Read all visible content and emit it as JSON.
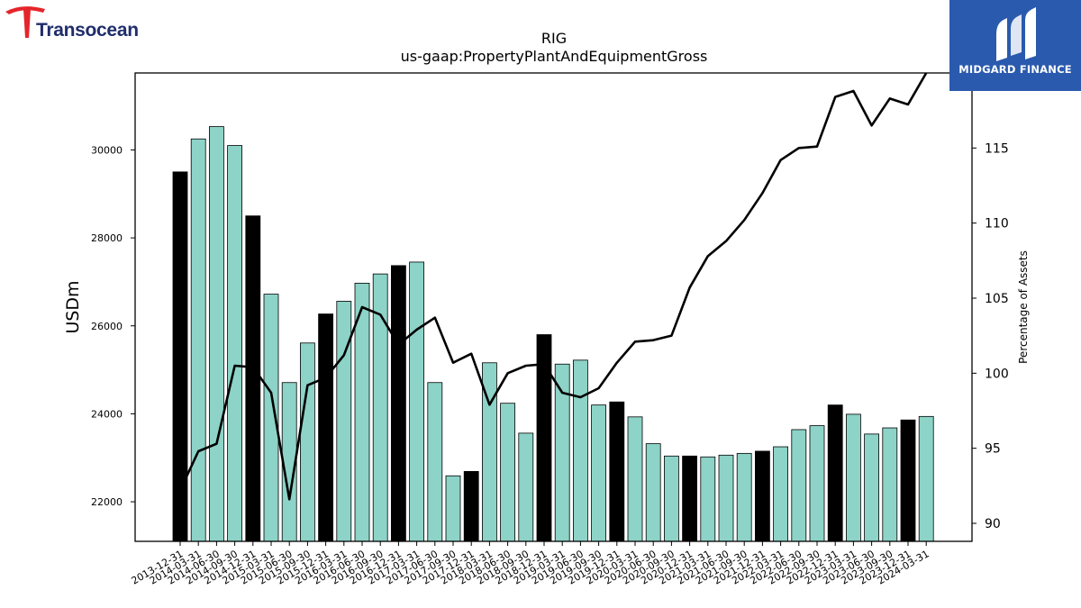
{
  "logos": {
    "left_text": "Transocean",
    "right_text": "MIDGARD FINANCE"
  },
  "colors": {
    "bar_normal": "#8dd3c7",
    "bar_highlight": "#000000",
    "line": "#000000",
    "logo_left_red": "#e4252b",
    "logo_left_navy": "#1f2d6b",
    "logo_right_bg": "#2a5aad"
  },
  "chart_data": {
    "type": "bar",
    "title": "RIG",
    "subtitle": "us-gaap:PropertyPlantAndEquipmentGross",
    "ylabel": "USDm",
    "y2label": "Percentage of Assets",
    "ylim": [
      21100,
      31750
    ],
    "y2lim": [
      88.8,
      120.0
    ],
    "yticks": [
      22000,
      24000,
      26000,
      28000,
      30000
    ],
    "y2ticks": [
      90,
      95,
      100,
      105,
      110,
      115
    ],
    "categories": [
      "2013-12-31",
      "2014-03-31",
      "2014-06-30",
      "2014-09-30",
      "2014-12-31",
      "2015-03-31",
      "2015-06-30",
      "2015-09-30",
      "2015-12-31",
      "2016-03-31",
      "2016-06-30",
      "2016-09-30",
      "2016-12-31",
      "2017-03-31",
      "2017-06-30",
      "2017-09-30",
      "2017-12-31",
      "2018-03-31",
      "2018-06-30",
      "2018-09-30",
      "2018-12-31",
      "2019-03-31",
      "2019-06-30",
      "2019-09-30",
      "2019-12-31",
      "2020-03-31",
      "2020-06-30",
      "2020-09-30",
      "2020-12-31",
      "2021-03-31",
      "2021-06-30",
      "2021-09-30",
      "2021-12-31",
      "2022-03-31",
      "2022-06-30",
      "2022-09-30",
      "2022-12-31",
      "2023-03-31",
      "2023-06-30",
      "2023-09-30",
      "2023-12-31",
      "2024-03-31"
    ],
    "series": [
      {
        "type": "bar",
        "values": [
          29500,
          30250,
          30530,
          30100,
          28500,
          26720,
          24710,
          25610,
          26270,
          26560,
          26970,
          27180,
          27370,
          27450,
          24710,
          22590,
          22690,
          25160,
          24240,
          23560,
          25800,
          25130,
          25220,
          24200,
          24270,
          23930,
          23320,
          23040,
          23040,
          23020,
          23060,
          23100,
          23150,
          23250,
          23640,
          23730,
          24200,
          23990,
          23540,
          23680,
          23860,
          23940
        ],
        "highlight": [
          true,
          false,
          false,
          false,
          true,
          false,
          false,
          false,
          true,
          false,
          false,
          false,
          true,
          false,
          false,
          false,
          true,
          false,
          false,
          false,
          true,
          false,
          false,
          false,
          true,
          false,
          false,
          false,
          true,
          false,
          false,
          false,
          true,
          false,
          false,
          false,
          true,
          false,
          false,
          false,
          true,
          false
        ]
      },
      {
        "type": "line",
        "axis": "right",
        "values": [
          92.2,
          94.8,
          95.3,
          100.5,
          100.4,
          98.7,
          91.6,
          99.2,
          99.7,
          101.2,
          104.4,
          103.9,
          101.9,
          102.9,
          103.7,
          100.7,
          101.3,
          97.9,
          100.0,
          100.5,
          100.6,
          98.7,
          98.4,
          99.0,
          100.7,
          102.1,
          102.2,
          102.5,
          105.7,
          107.8,
          108.8,
          110.2,
          112.0,
          114.2,
          115.0,
          115.1,
          118.4,
          118.8,
          116.5,
          118.3,
          117.9,
          120.0
        ]
      }
    ],
    "grid": false,
    "legend": "none"
  }
}
